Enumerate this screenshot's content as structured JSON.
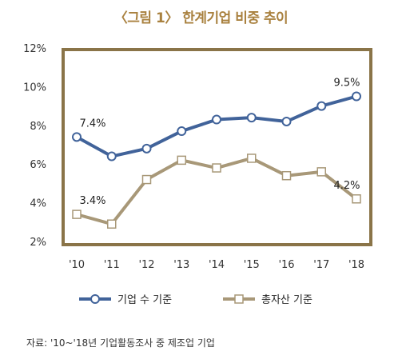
{
  "title": "〈그림 1〉 한계기업 비중 추이",
  "source": "자료: '10~'18년 기업활동조사 중 제조업 기업",
  "colors": {
    "frame": "#8a7448",
    "series1": "#41639a",
    "series2": "#a89878",
    "title": "#a9813f"
  },
  "chart_data": {
    "type": "line",
    "categories": [
      "'10",
      "'11",
      "'12",
      "'13",
      "'14",
      "'15",
      "'16",
      "'17",
      "'18"
    ],
    "y_ticks": [
      "12%",
      "10%",
      "8%",
      "6%",
      "4%",
      "2%"
    ],
    "ylim": [
      2,
      12
    ],
    "grid": false,
    "legend_position": "bottom",
    "series": [
      {
        "name": "기업 수 기준",
        "marker": "circle",
        "values": [
          7.4,
          6.4,
          6.8,
          7.7,
          8.3,
          8.4,
          8.2,
          9.0,
          9.5
        ],
        "labels": [
          {
            "index": 0,
            "text": "7.4%"
          },
          {
            "index": 8,
            "text": "9.5%"
          }
        ]
      },
      {
        "name": "총자산 기준",
        "marker": "square",
        "values": [
          3.4,
          2.9,
          5.2,
          6.2,
          5.8,
          6.3,
          5.4,
          5.6,
          4.2
        ],
        "labels": [
          {
            "index": 0,
            "text": "3.4%"
          },
          {
            "index": 8,
            "text": "4.2%"
          }
        ]
      }
    ]
  }
}
